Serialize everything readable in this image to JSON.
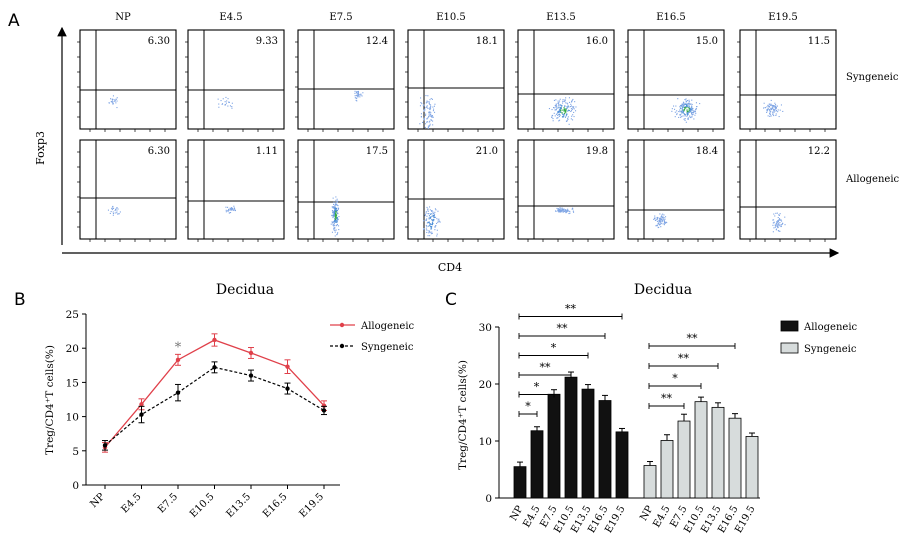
{
  "panel_a": {
    "label": "A",
    "columns": [
      "NP",
      "E4.5",
      "E7.5",
      "E10.5",
      "E13.5",
      "E16.5",
      "E19.5"
    ],
    "rows": [
      {
        "name": "Syngeneic",
        "values": [
          "6.30",
          "9.33",
          "12.4",
          "18.1",
          "16.0",
          "15.0",
          "11.5"
        ]
      },
      {
        "name": "Allogeneic",
        "values": [
          "6.30",
          "1.11",
          "17.5",
          "21.0",
          "19.8",
          "18.4",
          "12.2"
        ]
      }
    ],
    "ylabel": "Foxp3",
    "xlabel": "CD4"
  },
  "panel_b_label": "B",
  "panel_c_label": "C",
  "chart_data": [
    {
      "type": "line",
      "title": "Decidua",
      "ylabel": "Treg/CD4⁺T cells(%)",
      "categories": [
        "NP",
        "E4.5",
        "E7.5",
        "E10.5",
        "E13.5",
        "E16.5",
        "E19.5"
      ],
      "ylim": [
        0,
        25
      ],
      "yticks": [
        "0",
        "5",
        "10",
        "15",
        "20",
        "25"
      ],
      "series": [
        {
          "name": "Allogeneic",
          "color": "#e0404a",
          "values": [
            5.5,
            11.8,
            18.3,
            21.2,
            19.3,
            17.3,
            11.6
          ],
          "errors": [
            0.7,
            0.8,
            0.8,
            0.9,
            0.8,
            1.0,
            0.7
          ]
        },
        {
          "name": "Syngeneic",
          "color": "#000000",
          "values": [
            5.8,
            10.3,
            13.5,
            17.2,
            16.0,
            14.1,
            10.9
          ],
          "errors": [
            0.7,
            1.2,
            1.2,
            0.8,
            0.8,
            0.8,
            0.6
          ]
        }
      ],
      "annotations": [
        {
          "text": "*",
          "category": "E7.5"
        }
      ]
    },
    {
      "type": "bar",
      "title": "Decidua",
      "ylabel": "Treg/CD4⁺T cells(%)",
      "categories": [
        "NP",
        "E4.5",
        "E7.5",
        "E10.5",
        "E13.5",
        "E16.5",
        "E19.5"
      ],
      "ylim": [
        0,
        30
      ],
      "yticks": [
        "0",
        "10",
        "20",
        "30"
      ],
      "series": [
        {
          "name": "Allogeneic",
          "color": "#111111",
          "values": [
            5.5,
            11.8,
            18.2,
            21.2,
            19.1,
            17.1,
            11.6
          ],
          "errors": [
            0.8,
            0.7,
            0.8,
            0.9,
            0.8,
            0.9,
            0.6
          ]
        },
        {
          "name": "Syngeneic",
          "color": "#d7dcdc",
          "values": [
            5.7,
            10.1,
            13.5,
            16.9,
            15.9,
            14.0,
            10.8
          ],
          "errors": [
            0.7,
            1.0,
            1.2,
            0.8,
            0.8,
            0.8,
            0.6
          ]
        }
      ],
      "significance": [
        {
          "series": 0,
          "from": "NP",
          "to": "E4.5",
          "label": "*"
        },
        {
          "series": 0,
          "from": "NP",
          "to": "E7.5",
          "label": "*"
        },
        {
          "series": 0,
          "from": "NP",
          "to": "E10.5",
          "label": "**"
        },
        {
          "series": 0,
          "from": "NP",
          "to": "E13.5",
          "label": "*"
        },
        {
          "series": 0,
          "from": "NP",
          "to": "E16.5",
          "label": "**"
        },
        {
          "series": 0,
          "from": "NP",
          "to": "E19.5",
          "label": "**"
        },
        {
          "series": 1,
          "from": "NP",
          "to": "E7.5",
          "label": "**"
        },
        {
          "series": 1,
          "from": "NP",
          "to": "E10.5",
          "label": "*"
        },
        {
          "series": 1,
          "from": "NP",
          "to": "E13.5",
          "label": "**"
        },
        {
          "series": 1,
          "from": "NP",
          "to": "E16.5",
          "label": "**"
        }
      ]
    }
  ]
}
